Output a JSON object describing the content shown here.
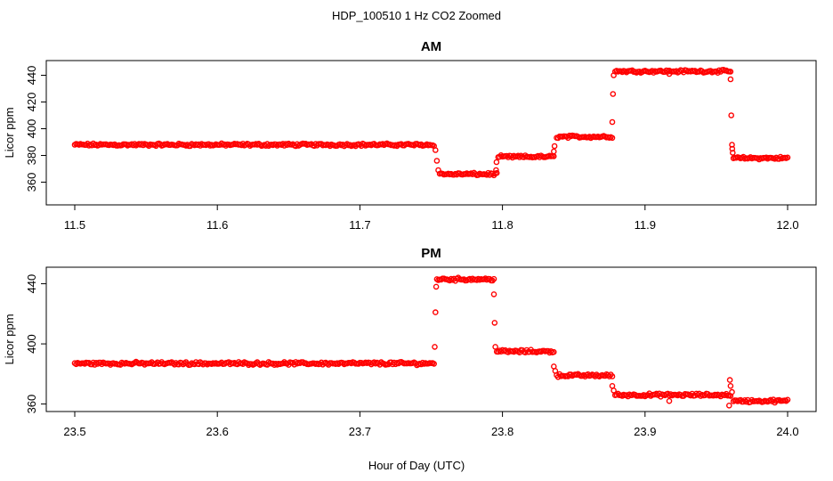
{
  "figure": {
    "title": "HDP_100510  1 Hz CO2 Zoomed",
    "xlabel": "Hour of Day (UTC)",
    "point_color": "#ff0000"
  },
  "chart_data": [
    {
      "type": "scatter",
      "title": "AM",
      "xlabel": "",
      "ylabel": "Licor ppm",
      "xlim": [
        11.5,
        12.0
      ],
      "ylim": [
        343,
        451
      ],
      "xticks": [
        "11.5",
        "11.6",
        "11.7",
        "11.8",
        "11.9",
        "12.0"
      ],
      "yticks": [
        "360",
        "380",
        "400",
        "420",
        "440"
      ],
      "grid": false,
      "series": [
        {
          "marker": "open-circle",
          "color": "#ff0000",
          "segments": [
            {
              "x": [
                11.5,
                11.752
              ],
              "y": 388
            },
            {
              "x": [
                11.756,
                11.796
              ],
              "y": 366
            },
            {
              "x": [
                11.797,
                11.836
              ],
              "y": 379
            },
            {
              "x": [
                11.838,
                11.877
              ],
              "y": 394
            },
            {
              "x": [
                11.879,
                11.96
              ],
              "y": 443
            },
            {
              "x": [
                11.962,
                12.0
              ],
              "y": 378
            }
          ],
          "transitions": [
            {
              "x": 11.753,
              "y": 384
            },
            {
              "x": 11.754,
              "y": 376
            },
            {
              "x": 11.755,
              "y": 369
            },
            {
              "x": 11.7955,
              "y": 369
            },
            {
              "x": 11.7958,
              "y": 375
            },
            {
              "x": 11.836,
              "y": 383
            },
            {
              "x": 11.8365,
              "y": 387
            },
            {
              "x": 11.877,
              "y": 405
            },
            {
              "x": 11.8775,
              "y": 426
            },
            {
              "x": 11.878,
              "y": 440
            },
            {
              "x": 11.96,
              "y": 437
            },
            {
              "x": 11.9605,
              "y": 410
            },
            {
              "x": 11.961,
              "y": 388
            },
            {
              "x": 11.9612,
              "y": 385
            },
            {
              "x": 11.9615,
              "y": 382
            },
            {
              "x": 11.917,
              "y": 441
            }
          ]
        }
      ]
    },
    {
      "type": "scatter",
      "title": "PM",
      "xlabel": "Hour of Day (UTC)",
      "ylabel": "Licor ppm",
      "xlim": [
        23.5,
        24.0
      ],
      "ylim": [
        355,
        451
      ],
      "xticks": [
        "23.5",
        "23.6",
        "23.7",
        "23.8",
        "23.9",
        "24.0"
      ],
      "yticks": [
        "360",
        "400",
        "440"
      ],
      "grid": false,
      "series": [
        {
          "marker": "open-circle",
          "color": "#ff0000",
          "segments": [
            {
              "x": [
                23.5,
                23.752
              ],
              "y": 387
            },
            {
              "x": [
                23.754,
                23.794
              ],
              "y": 443
            },
            {
              "x": [
                23.796,
                23.836
              ],
              "y": 395
            },
            {
              "x": [
                23.838,
                23.877
              ],
              "y": 379
            },
            {
              "x": [
                23.879,
                23.96
              ],
              "y": 366
            },
            {
              "x": [
                23.962,
                24.0
              ],
              "y": 362
            }
          ],
          "transitions": [
            {
              "x": 23.7525,
              "y": 398
            },
            {
              "x": 23.753,
              "y": 421
            },
            {
              "x": 23.7535,
              "y": 438
            },
            {
              "x": 23.794,
              "y": 433
            },
            {
              "x": 23.7945,
              "y": 414
            },
            {
              "x": 23.795,
              "y": 398
            },
            {
              "x": 23.836,
              "y": 385
            },
            {
              "x": 23.837,
              "y": 382
            },
            {
              "x": 23.877,
              "y": 372
            },
            {
              "x": 23.878,
              "y": 369
            },
            {
              "x": 23.917,
              "y": 362
            },
            {
              "x": 23.959,
              "y": 359
            },
            {
              "x": 23.9595,
              "y": 376
            },
            {
              "x": 23.96,
              "y": 372
            },
            {
              "x": 23.961,
              "y": 368
            }
          ]
        }
      ]
    }
  ]
}
